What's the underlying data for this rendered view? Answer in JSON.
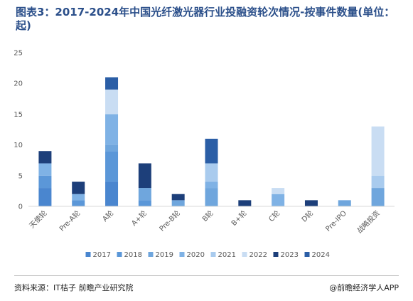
{
  "title": "图表3：2017-2024年中国光纤激光器行业投融资轮次情况-按事件数量(单位：起)",
  "footer": {
    "source": "资料来源：IT桔子 前瞻产业研究院",
    "brand": "@前瞻经济学人APP"
  },
  "chart_data": {
    "type": "bar",
    "stacked": true,
    "categories": [
      "天使轮",
      "Pre-A轮",
      "A轮",
      "A+轮",
      "Pre-B轮",
      "B轮",
      "B+轮",
      "C轮",
      "D轮",
      "Pre-IPO",
      "战略投资"
    ],
    "series": [
      {
        "name": "2017",
        "color": "#4a86cf",
        "values": [
          3,
          0,
          4,
          0,
          0,
          0,
          0,
          0,
          0,
          0,
          0
        ]
      },
      {
        "name": "2018",
        "color": "#5b97d8",
        "values": [
          2,
          1,
          5,
          1,
          0,
          0,
          0,
          0,
          0,
          0,
          0
        ]
      },
      {
        "name": "2019",
        "color": "#6fa6dd",
        "values": [
          0,
          0,
          1,
          2,
          1,
          3,
          0,
          0,
          0,
          1,
          3
        ]
      },
      {
        "name": "2020",
        "color": "#7fb2e5",
        "values": [
          2,
          1,
          5,
          0,
          0,
          1,
          0,
          2,
          0,
          0,
          0
        ]
      },
      {
        "name": "2021",
        "color": "#a9cbee",
        "values": [
          0,
          0,
          0,
          0,
          0,
          3,
          0,
          0,
          0,
          0,
          2
        ]
      },
      {
        "name": "2022",
        "color": "#c9ddf3",
        "values": [
          0,
          0,
          4,
          0,
          0,
          0,
          0,
          1,
          0,
          0,
          8
        ]
      },
      {
        "name": "2023",
        "color": "#1d3f7a",
        "values": [
          2,
          2,
          0,
          4,
          1,
          0,
          1,
          0,
          1,
          0,
          0
        ]
      },
      {
        "name": "2024",
        "color": "#2b5ea6",
        "values": [
          0,
          0,
          2,
          0,
          0,
          4,
          0,
          0,
          0,
          0,
          0
        ]
      }
    ],
    "ylim": [
      0,
      25
    ],
    "yticks": [
      0,
      5,
      10,
      15,
      20,
      25
    ],
    "grid": false,
    "legend_position": "bottom"
  }
}
